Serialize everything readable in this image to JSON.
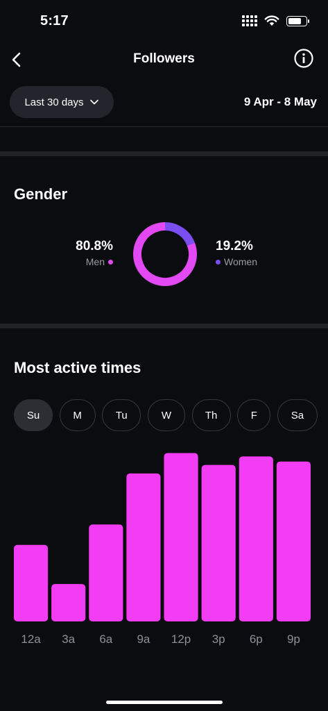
{
  "status_bar": {
    "time": "5:17",
    "battery_level": 0.8
  },
  "header": {
    "title": "Followers",
    "back_icon": "chevron-left-icon",
    "info_icon": "info-icon"
  },
  "date_filter": {
    "range_label": "Last 30 days",
    "date_range": "9 Apr - 8 May"
  },
  "gender": {
    "title": "Gender",
    "men": {
      "percent": "80.8%",
      "label": "Men",
      "value": 80.8,
      "color": "#e349f2"
    },
    "women": {
      "percent": "19.2%",
      "label": "Women",
      "value": 19.2,
      "color": "#7a4ef0"
    }
  },
  "active_times": {
    "title": "Most active times",
    "days": [
      {
        "label": "Su",
        "selected": true
      },
      {
        "label": "M",
        "selected": false
      },
      {
        "label": "Tu",
        "selected": false
      },
      {
        "label": "W",
        "selected": false
      },
      {
        "label": "Th",
        "selected": false
      },
      {
        "label": "F",
        "selected": false
      },
      {
        "label": "Sa",
        "selected": false
      }
    ]
  },
  "chart_data": {
    "type": "bar",
    "categories": [
      "12a",
      "3a",
      "6a",
      "9a",
      "12p",
      "3p",
      "6p",
      "9p"
    ],
    "values": [
      45,
      22,
      57,
      87,
      99,
      92,
      97,
      94
    ],
    "ylim": [
      0,
      100
    ],
    "bar_color": "#f33df4",
    "grid": false
  }
}
